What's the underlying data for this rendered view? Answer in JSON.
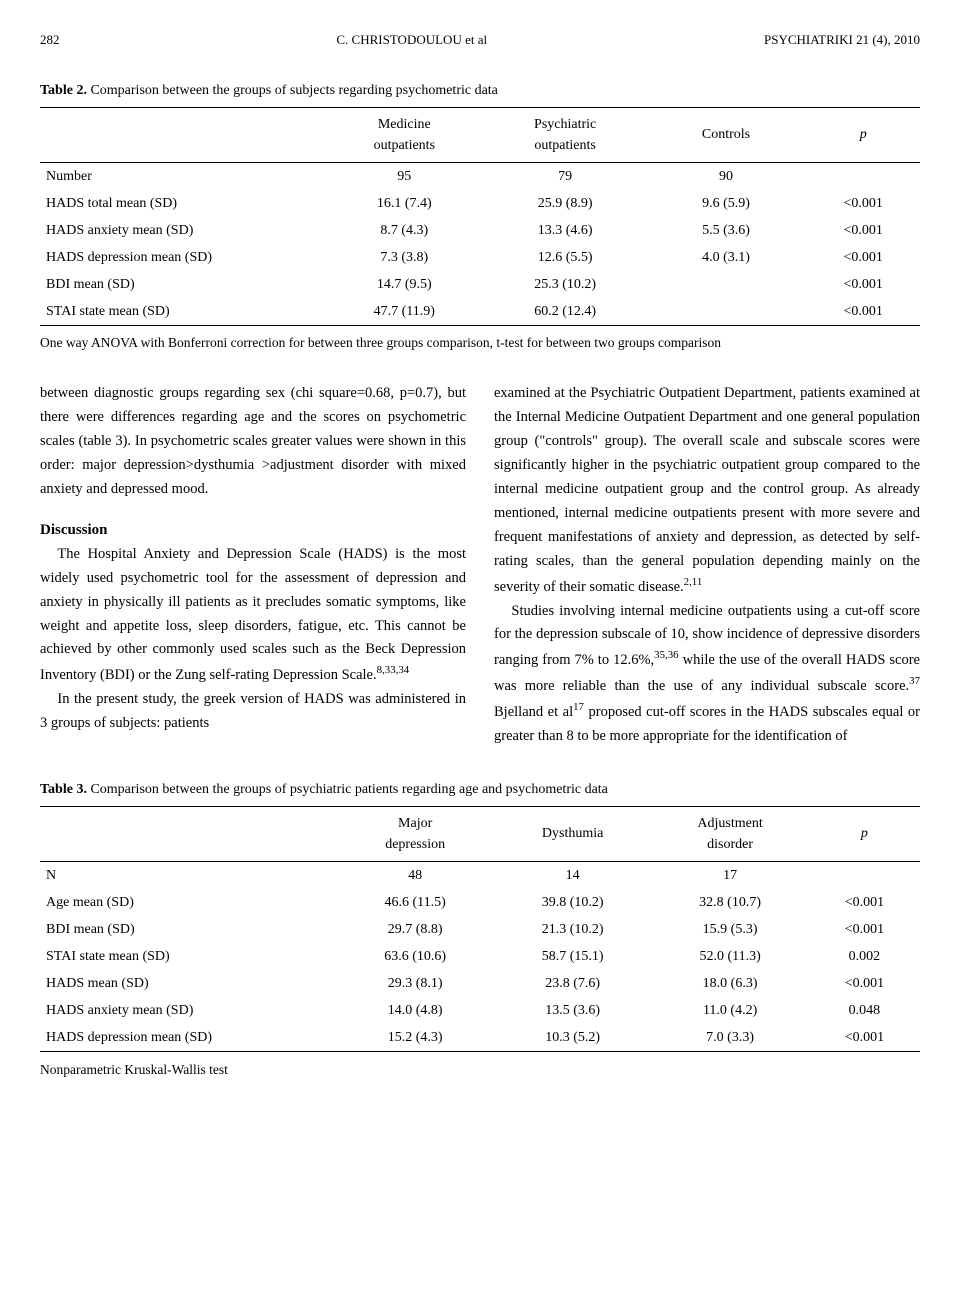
{
  "header": {
    "page_num": "282",
    "center": "C. CHRISTODOULOU et al",
    "right": "PSYCHIATRIKI 21 (4), 2010"
  },
  "table2": {
    "caption_label": "Table 2.",
    "caption_text": " Comparison between the groups of subjects regarding psychometric data",
    "columns": [
      "",
      "Medicine outpatients",
      "Psychiatric outpatients",
      "Controls",
      "p"
    ],
    "col1_line1": "Medicine",
    "col1_line2": "outpatients",
    "col2_line1": "Psychiatric",
    "col2_line2": "outpatients",
    "col3": "Controls",
    "col4": "p",
    "rows": [
      {
        "label": "Number",
        "c1": "95",
        "c2": "79",
        "c3": "90",
        "p": ""
      },
      {
        "label": "HADS total mean (SD)",
        "c1": "16.1 (7.4)",
        "c2": "25.9 (8.9)",
        "c3": "9.6 (5.9)",
        "p": "<0.001"
      },
      {
        "label": "HADS anxiety mean (SD)",
        "c1": "8.7 (4.3)",
        "c2": "13.3 (4.6)",
        "c3": "5.5 (3.6)",
        "p": "<0.001"
      },
      {
        "label": "HADS depression mean (SD)",
        "c1": "7.3 (3.8)",
        "c2": "12.6 (5.5)",
        "c3": "4.0 (3.1)",
        "p": "<0.001"
      },
      {
        "label": "BDI mean (SD)",
        "c1": "14.7 (9.5)",
        "c2": "25.3 (10.2)",
        "c3": "",
        "p": "<0.001"
      },
      {
        "label": "STAI state mean (SD)",
        "c1": "47.7 (11.9)",
        "c2": "60.2 (12.4)",
        "c3": "",
        "p": "<0.001"
      }
    ],
    "note": "One way ANOVA with Bonferroni correction for between three groups comparison, t-test for between two groups comparison"
  },
  "body": {
    "left_p1": "between diagnostic groups regarding sex (chi square=0.68, p=0.7), but there were differences regarding age and the scores on psychometric scales (table 3). In psychometric scales greater values were shown in this order: major depression>dysthumia >adjustment disorder with mixed anxiety and depressed mood.",
    "discussion_head": "Discussion",
    "left_p2a": "The Hospital Anxiety and Depression Scale (HADS) is the most widely used psychometric tool for the assessment of depression and anxiety in physically ill patients as it precludes somatic symptoms, like weight and appetite loss, sleep disorders, fatigue, etc. This cannot be achieved by other commonly used scales such as the Beck Depression Inventory (BDI) or the Zung self-rating Depression Scale.",
    "left_p2_sup": "8,33,34",
    "left_p3": "In the present study, the greek version of HADS was administered in 3 groups of subjects: patients",
    "right_p1a": "examined at the Psychiatric Outpatient Department, patients examined at the Internal Medicine Outpatient Department and one general population group (\"controls\" group). The overall scale and subscale scores were significantly higher in the psychiatric outpatient group compared to the internal medicine outpatient group and the control group. As already mentioned, internal medicine outpatients present with more severe and frequent manifestations of anxiety and depression, as detected by self-rating scales, than the general population depending mainly on the severity of their somatic disease.",
    "right_p1_sup": "2,11",
    "right_p2a": "Studies involving internal medicine outpatients using a cut-off score for the depression subscale of 10, show incidence of depressive disorders ranging from 7% to 12.6%,",
    "right_p2_sup1": "35,36",
    "right_p2b": " while the use of the overall HADS score was more reliable than the use of any individual subscale score.",
    "right_p2_sup2": "37",
    "right_p2c": " Bjelland et al",
    "right_p2_sup3": "17",
    "right_p2d": " proposed cut-off scores in the HADS subscales equal or greater than 8 to be more appropriate for the identification of"
  },
  "table3": {
    "caption_label": "Table 3.",
    "caption_text": " Comparison between the groups of psychiatric patients regarding age and psychometric data",
    "col1_line1": "Major",
    "col1_line2": "depression",
    "col2": "Dysthumia",
    "col3_line1": "Adjustment",
    "col3_line2": "disorder",
    "col4": "p",
    "rows": [
      {
        "label": "N",
        "c1": "48",
        "c2": "14",
        "c3": "17",
        "p": ""
      },
      {
        "label": "Age mean (SD)",
        "c1": "46.6 (11.5)",
        "c2": "39.8 (10.2)",
        "c3": "32.8 (10.7)",
        "p": "<0.001"
      },
      {
        "label": "BDI mean (SD)",
        "c1": "29.7 (8.8)",
        "c2": "21.3 (10.2)",
        "c3": "15.9 (5.3)",
        "p": "<0.001"
      },
      {
        "label": "STAI state mean (SD)",
        "c1": "63.6 (10.6)",
        "c2": "58.7 (15.1)",
        "c3": "52.0 (11.3)",
        "p": "0.002"
      },
      {
        "label": "HADS mean (SD)",
        "c1": "29.3 (8.1)",
        "c2": "23.8 (7.6)",
        "c3": "18.0 (6.3)",
        "p": "<0.001"
      },
      {
        "label": "HADS anxiety mean (SD)",
        "c1": "14.0 (4.8)",
        "c2": "13.5 (3.6)",
        "c3": "11.0 (4.2)",
        "p": "0.048"
      },
      {
        "label": "HADS depression mean (SD)",
        "c1": "15.2 (4.3)",
        "c2": "10.3 (5.2)",
        "c3": "7.0 (3.3)",
        "p": "<0.001"
      }
    ],
    "note": "Nonparametric Kruskal-Wallis test"
  }
}
